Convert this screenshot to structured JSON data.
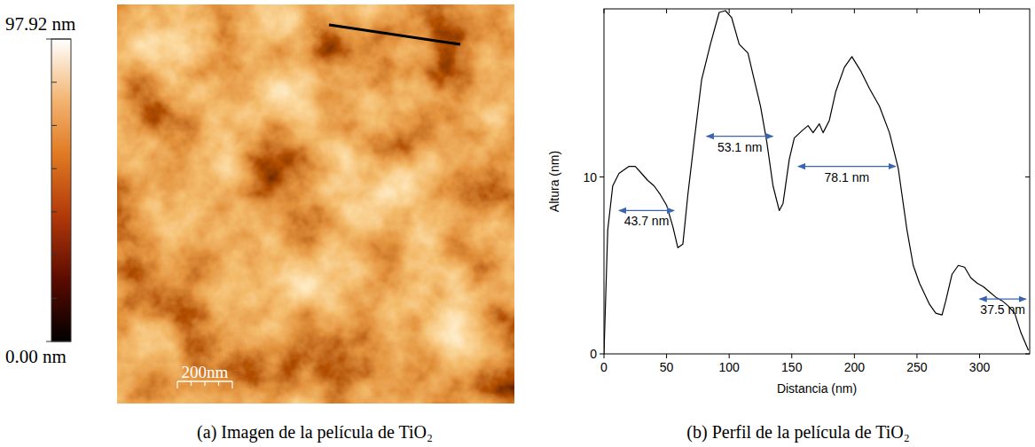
{
  "chart_data": [
    {
      "type": "image",
      "title": "(a) Imagen de la película de TiO₂",
      "colorbar_range": [
        0,
        97.92
      ],
      "colorbar_ticks": [
        {
          "value": 0,
          "label": "0.00 nm"
        },
        {
          "value": 97.92,
          "label": "97.92 nm"
        }
      ],
      "scale_bar_label": "200nm"
    },
    {
      "type": "line",
      "title": "(b) Perfil de la película de TiO₂",
      "x_label": "Distancia (nm)",
      "y_label": "Altura (nm)",
      "color": "#000000",
      "x": [
        0,
        3,
        7,
        12,
        20,
        25,
        30,
        35,
        40,
        45,
        50,
        55,
        59,
        63,
        67,
        72,
        78,
        85,
        92,
        97,
        102,
        108,
        115,
        120,
        125,
        130,
        135,
        140,
        143,
        148,
        152,
        158,
        163,
        167,
        172,
        175,
        180,
        185,
        192,
        198,
        205,
        212,
        220,
        228,
        235,
        242,
        247,
        252,
        260,
        265,
        270,
        273,
        278,
        283,
        288,
        293,
        298,
        303,
        308,
        313,
        318,
        323,
        328,
        333,
        339
      ],
      "values": [
        0,
        7,
        9.5,
        10.2,
        10.6,
        10.6,
        10.2,
        9.8,
        9.5,
        9.0,
        8.4,
        7.2,
        6.0,
        6.2,
        9.0,
        12.0,
        15.5,
        17.5,
        19.3,
        19.4,
        19.0,
        17.5,
        17.0,
        15.5,
        14.0,
        12.0,
        9.5,
        8.1,
        8.5,
        11.0,
        12.2,
        12.6,
        12.9,
        12.5,
        13.0,
        12.5,
        13.2,
        14.8,
        16.2,
        16.8,
        16.0,
        15.0,
        14.0,
        12.5,
        10.5,
        7.0,
        5.0,
        4.0,
        2.8,
        2.3,
        2.2,
        3.0,
        4.5,
        5.0,
        4.9,
        4.3,
        4.0,
        3.8,
        3.5,
        3.2,
        3.0,
        2.7,
        2.3,
        1.2,
        0.2
      ],
      "xlim": [
        0,
        340
      ],
      "xticks": [
        0,
        50,
        100,
        150,
        200,
        250,
        300
      ],
      "ylim": [
        0,
        19.5
      ],
      "yticks": [
        0,
        10
      ],
      "annotations": [
        {
          "text": "43.7 nm",
          "x": [
            12,
            56
          ],
          "y": 8.1
        },
        {
          "text": "53.1 nm",
          "x": [
            82,
            135
          ],
          "y": 12.3
        },
        {
          "text": "78.1 nm",
          "x": [
            155,
            233
          ],
          "y": 10.6
        },
        {
          "text": "37.5 nm",
          "x": [
            300,
            337
          ],
          "y": 3.1
        }
      ]
    }
  ]
}
